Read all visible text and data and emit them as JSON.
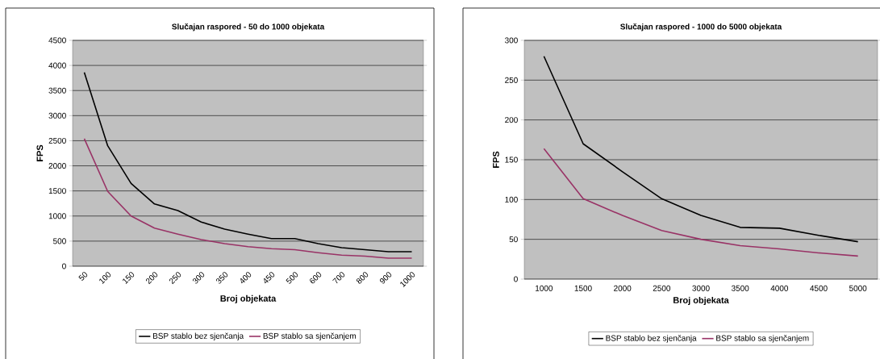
{
  "chart_data": [
    {
      "type": "line",
      "title": "Slučajan raspored - 50 do 1000 objekata",
      "xlabel": "Broj objekata",
      "ylabel": "FPS",
      "categories": [
        "50",
        "100",
        "150",
        "200",
        "250",
        "300",
        "350",
        "400",
        "450",
        "500",
        "600",
        "700",
        "800",
        "900",
        "1000"
      ],
      "series": [
        {
          "name": "BSP stablo bez sjenčanja",
          "color": "#000000",
          "values": [
            3860,
            2400,
            1650,
            1240,
            1110,
            880,
            740,
            640,
            550,
            550,
            450,
            370,
            330,
            290,
            290
          ]
        },
        {
          "name": "BSP stablo sa sjenčanjem",
          "color": "#993366",
          "values": [
            2540,
            1490,
            1000,
            760,
            640,
            530,
            450,
            390,
            350,
            330,
            270,
            220,
            200,
            160,
            160
          ]
        }
      ],
      "ylim": [
        0,
        4500
      ],
      "yticks": [
        0,
        500,
        1000,
        1500,
        2000,
        2500,
        3000,
        3500,
        4000,
        4500
      ],
      "grid": "y",
      "legend": "bottom"
    },
    {
      "type": "line",
      "title": "Slučajan raspored - 1000 do 5000 objekata",
      "xlabel": "Broj objekata",
      "ylabel": "FPS",
      "categories": [
        "1000",
        "1500",
        "2000",
        "2500",
        "3000",
        "3500",
        "4000",
        "4500",
        "5000"
      ],
      "series": [
        {
          "name": "BSP stablo bez sjenčanja",
          "color": "#000000",
          "values": [
            280,
            170,
            135,
            101,
            80,
            65,
            64,
            55,
            47
          ]
        },
        {
          "name": "BSP stablo sa sjenčanjem",
          "color": "#993366",
          "values": [
            164,
            101,
            80,
            61,
            50,
            42,
            38,
            33,
            29
          ]
        }
      ],
      "ylim": [
        0,
        300
      ],
      "yticks": [
        0,
        50,
        100,
        150,
        200,
        250,
        300
      ],
      "grid": "y",
      "legend": "bottom"
    }
  ]
}
